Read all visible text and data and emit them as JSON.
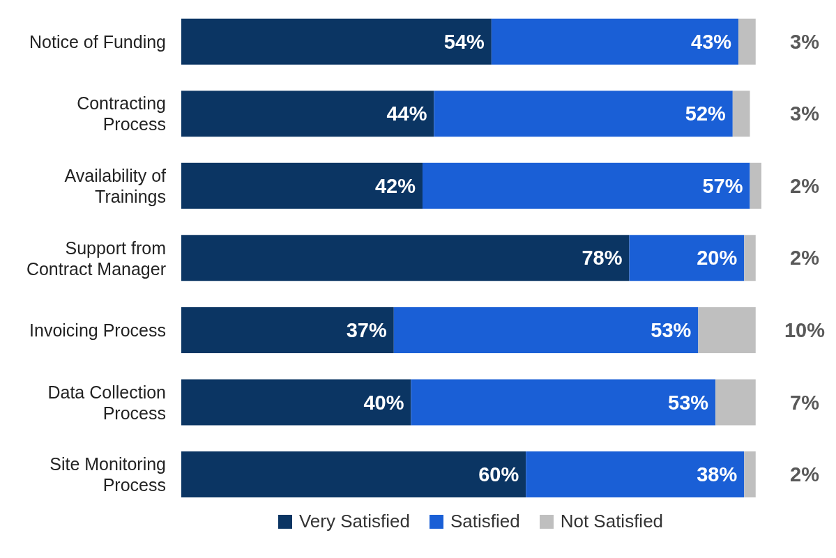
{
  "chart_data": {
    "type": "bar",
    "orientation": "horizontal",
    "stacked": true,
    "legend": "bottom",
    "grid": false,
    "categories": [
      "Notice of Funding",
      "Contracting Process",
      "Availability of Trainings",
      "Support from Contract Manager",
      "Invoicing Process",
      "Data Collection Process",
      "Site Monitoring Process"
    ],
    "series": [
      {
        "name": "Very Satisfied",
        "color": "#0b3563",
        "values": [
          54,
          44,
          42,
          78,
          37,
          40,
          60
        ],
        "value_labels": [
          "54%",
          "44%",
          "42%",
          "78%",
          "37%",
          "40%",
          "60%"
        ]
      },
      {
        "name": "Satisfied",
        "color": "#1a5fd6",
        "values": [
          43,
          52,
          57,
          20,
          53,
          53,
          38
        ],
        "value_labels": [
          "43%",
          "52%",
          "57%",
          "20%",
          "53%",
          "53%",
          "38%"
        ]
      },
      {
        "name": "Not Satisfied",
        "color": "#bfbfbf",
        "values": [
          3,
          3,
          2,
          2,
          10,
          7,
          2
        ],
        "value_labels": [
          "3%",
          "3%",
          "2%",
          "2%",
          "10%",
          "7%",
          "2%"
        ]
      }
    ]
  }
}
